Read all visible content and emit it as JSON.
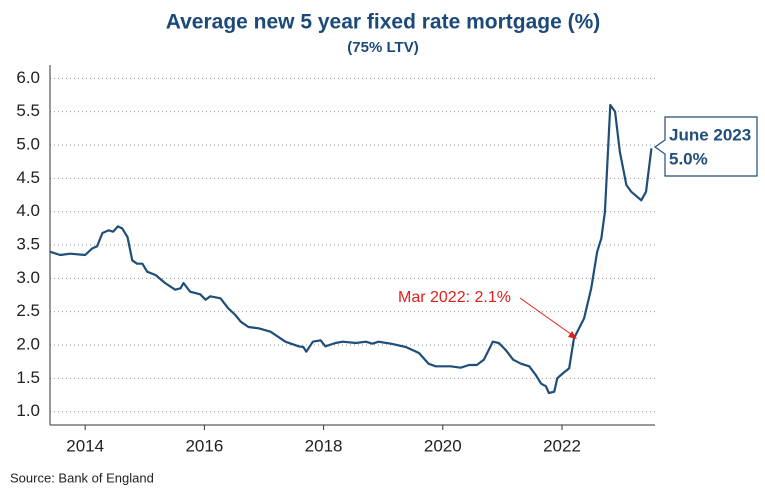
{
  "chart_data": {
    "type": "line",
    "title": "Average new 5 year fixed rate mortgage (%)",
    "subtitle": "(75% LTV)",
    "source": "Source: Bank of England",
    "xlim": [
      2013.41,
      2023.56
    ],
    "xticks": [
      2014,
      2016,
      2018,
      2020,
      2022
    ],
    "ylim": [
      0.8,
      6.2
    ],
    "yticks": [
      {
        "value": 1.0,
        "label": "1.0"
      },
      {
        "value": 1.5,
        "label": "1.5"
      },
      {
        "value": 2.0,
        "label": "2.0"
      },
      {
        "value": 2.5,
        "label": "2.5"
      },
      {
        "value": 3.0,
        "label": "3.0"
      },
      {
        "value": 3.5,
        "label": "3.5"
      },
      {
        "value": 4.0,
        "label": "4.0"
      },
      {
        "value": 4.5,
        "label": "4.5"
      },
      {
        "value": 5.0,
        "label": "5.0"
      },
      {
        "value": 5.5,
        "label": "5.5"
      },
      {
        "value": 6.0,
        "label": "6.0"
      }
    ],
    "grid": true,
    "series": [
      {
        "name": "Average new 5 year fixed rate mortgage",
        "color": "#1f4e79",
        "x": [
          2013.41,
          2013.58,
          2013.75,
          2014.0,
          2014.12,
          2014.2,
          2014.29,
          2014.39,
          2014.47,
          2014.55,
          2014.62,
          2014.71,
          2014.79,
          2014.87,
          2014.96,
          2015.04,
          2015.18,
          2015.34,
          2015.51,
          2015.6,
          2015.65,
          2015.76,
          2015.93,
          2016.02,
          2016.1,
          2016.27,
          2016.4,
          2016.52,
          2016.61,
          2016.74,
          2016.91,
          2017.11,
          2017.36,
          2017.58,
          2017.66,
          2017.71,
          2017.82,
          2017.95,
          2018.03,
          2018.2,
          2018.32,
          2018.54,
          2018.71,
          2018.82,
          2018.92,
          2019.13,
          2019.38,
          2019.6,
          2019.76,
          2019.88,
          2020.13,
          2020.3,
          2020.44,
          2020.57,
          2020.69,
          2020.84,
          2020.94,
          2021.06,
          2021.18,
          2021.31,
          2021.45,
          2021.56,
          2021.65,
          2021.73,
          2021.78,
          2021.87,
          2021.92,
          2022.02,
          2022.12,
          2022.2,
          2022.37,
          2022.49,
          2022.59,
          2022.66,
          2022.72,
          2022.81,
          2022.89,
          2022.97,
          2023.08,
          2023.16,
          2023.33,
          2023.41,
          2023.5
        ],
        "values": [
          3.4,
          3.35,
          3.37,
          3.35,
          3.45,
          3.48,
          3.68,
          3.72,
          3.7,
          3.78,
          3.75,
          3.62,
          3.27,
          3.22,
          3.22,
          3.1,
          3.05,
          2.93,
          2.83,
          2.85,
          2.93,
          2.8,
          2.76,
          2.68,
          2.73,
          2.7,
          2.55,
          2.45,
          2.35,
          2.27,
          2.25,
          2.2,
          2.05,
          1.98,
          1.97,
          1.9,
          2.05,
          2.07,
          1.98,
          2.03,
          2.05,
          2.03,
          2.05,
          2.02,
          2.05,
          2.02,
          1.97,
          1.88,
          1.72,
          1.68,
          1.68,
          1.66,
          1.7,
          1.7,
          1.78,
          2.05,
          2.03,
          1.92,
          1.78,
          1.72,
          1.68,
          1.55,
          1.42,
          1.38,
          1.28,
          1.3,
          1.5,
          1.58,
          1.65,
          2.1,
          2.4,
          2.85,
          3.4,
          3.6,
          4.0,
          5.6,
          5.5,
          4.9,
          4.4,
          4.3,
          4.17,
          4.3,
          4.95
        ]
      }
    ],
    "annotations": [
      {
        "label": "Mar 2022: 2.1%",
        "color": "#e0201b"
      },
      {
        "lines": [
          "June 2023",
          "5.0%"
        ],
        "color": "#1f4e79"
      }
    ]
  }
}
